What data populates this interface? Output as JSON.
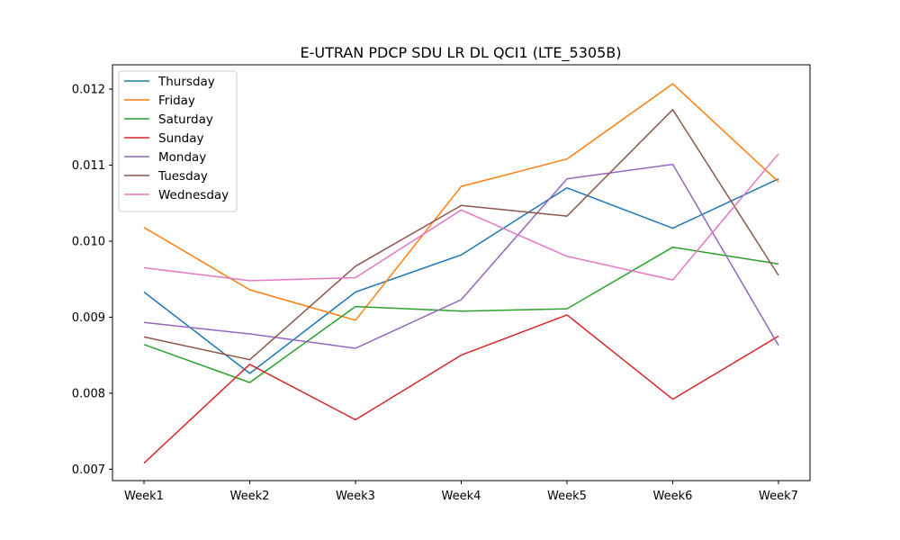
{
  "chart_data": {
    "type": "line",
    "title": "E-UTRAN PDCP SDU LR DL QCI1 (LTE_5305B)",
    "xlabel": "",
    "ylabel": "",
    "categories": [
      "Week1",
      "Week2",
      "Week3",
      "Week4",
      "Week5",
      "Week6",
      "Week7"
    ],
    "ylim": [
      0.00685,
      0.01232
    ],
    "yticks": [
      {
        "value": 0.007,
        "label": "0.007"
      },
      {
        "value": 0.008,
        "label": "0.008"
      },
      {
        "value": 0.009,
        "label": "0.009"
      },
      {
        "value": 0.01,
        "label": "0.010"
      },
      {
        "value": 0.011,
        "label": "0.011"
      },
      {
        "value": 0.012,
        "label": "0.012"
      }
    ],
    "grid": false,
    "legend_position": "top-left",
    "series": [
      {
        "name": "Thursday",
        "color": "#1f77b4",
        "values": [
          0.00933,
          0.00826,
          0.00933,
          0.00982,
          0.0107,
          0.01017,
          0.01082
        ]
      },
      {
        "name": "Friday",
        "color": "#ff7f0e",
        "values": [
          0.01018,
          0.00936,
          0.00896,
          0.01072,
          0.01108,
          0.01207,
          0.01078
        ]
      },
      {
        "name": "Saturday",
        "color": "#2ca02c",
        "values": [
          0.00864,
          0.00814,
          0.00914,
          0.00908,
          0.00911,
          0.00992,
          0.0097
        ]
      },
      {
        "name": "Sunday",
        "color": "#d62728",
        "values": [
          0.00708,
          0.00838,
          0.00765,
          0.0085,
          0.00903,
          0.00792,
          0.00875
        ]
      },
      {
        "name": "Monday",
        "color": "#9467bd",
        "values": [
          0.00893,
          0.00878,
          0.00859,
          0.00923,
          0.01082,
          0.01101,
          0.00863
        ]
      },
      {
        "name": "Tuesday",
        "color": "#8c564b",
        "values": [
          0.00874,
          0.00844,
          0.00967,
          0.01047,
          0.01033,
          0.01173,
          0.00955
        ]
      },
      {
        "name": "Wednesday",
        "color": "#e377c2",
        "values": [
          0.00965,
          0.00948,
          0.00952,
          0.01041,
          0.0098,
          0.00949,
          0.01115
        ]
      }
    ]
  }
}
